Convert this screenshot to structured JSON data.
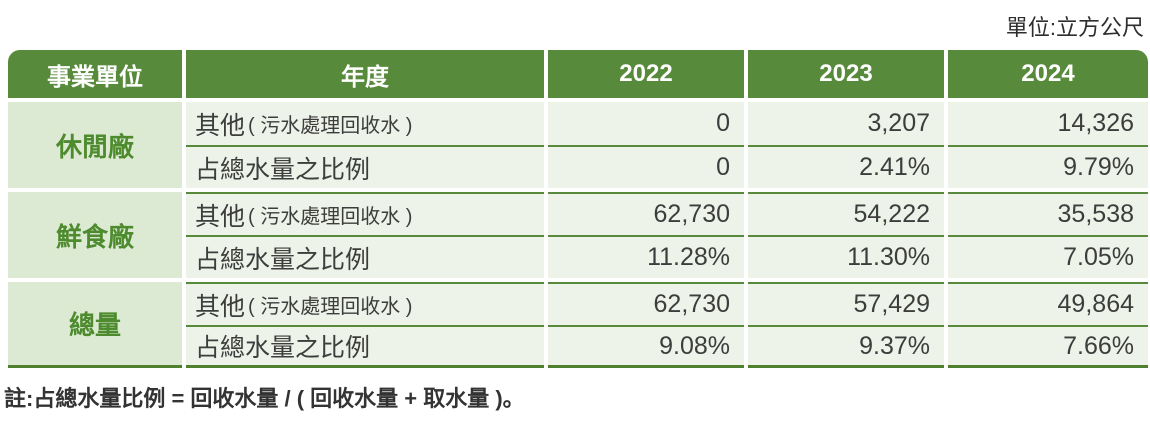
{
  "unit_label": "單位:立方公尺",
  "table": {
    "columns": [
      "事業單位",
      "年度",
      "2022",
      "2023",
      "2024"
    ],
    "groups": [
      {
        "name": "休閒廠",
        "rows": [
          {
            "label_main": "其他",
            "label_sub": "( 污水處理回收水 )",
            "values": [
              "0",
              "3,207",
              "14,326"
            ]
          },
          {
            "label_main": "占總水量之比例",
            "label_sub": "",
            "values": [
              "0",
              "2.41%",
              "9.79%"
            ]
          }
        ]
      },
      {
        "name": "鮮食廠",
        "rows": [
          {
            "label_main": "其他",
            "label_sub": "( 污水處理回收水 )",
            "values": [
              "62,730",
              "54,222",
              "35,538"
            ]
          },
          {
            "label_main": "占總水量之比例",
            "label_sub": "",
            "values": [
              "11.28%",
              "11.30%",
              "7.05%"
            ]
          }
        ]
      },
      {
        "name": "總量",
        "rows": [
          {
            "label_main": "其他",
            "label_sub": "( 污水處理回收水 )",
            "values": [
              "62,730",
              "57,429",
              "49,864"
            ]
          },
          {
            "label_main": "占總水量之比例",
            "label_sub": "",
            "values": [
              "9.08%",
              "9.37%",
              "7.66%"
            ]
          }
        ]
      }
    ]
  },
  "note": "註:占總水量比例 = 回收水量 / ( 回收水量 + 取水量 )。",
  "colors": {
    "header_green": "#578a3a",
    "bottom_border_green": "#4f8030",
    "group_label_bg": "#dcead3",
    "data_cell_bg": "#edf3e8",
    "group_label_text": "#4e8b2e",
    "body_text": "#3d3d3d"
  },
  "chart_data": {
    "type": "table",
    "title": "",
    "unit": "立方公尺",
    "columns": [
      "事業單位",
      "年度",
      "2022",
      "2023",
      "2024"
    ],
    "rows": [
      [
        "休閒廠",
        "其他 ( 污水處理回收水 )",
        "0",
        "3,207",
        "14,326"
      ],
      [
        "休閒廠",
        "占總水量之比例",
        "0",
        "2.41%",
        "9.79%"
      ],
      [
        "鮮食廠",
        "其他 ( 污水處理回收水 )",
        "62,730",
        "54,222",
        "35,538"
      ],
      [
        "鮮食廠",
        "占總水量之比例",
        "11.28%",
        "11.30%",
        "7.05%"
      ],
      [
        "總量",
        "其他 ( 污水處理回收水 )",
        "62,730",
        "57,429",
        "49,864"
      ],
      [
        "總量",
        "占總水量之比例",
        "9.08%",
        "9.37%",
        "7.66%"
      ]
    ],
    "footnote": "註:占總水量比例 = 回收水量 / ( 回收水量 + 取水量 )。"
  }
}
